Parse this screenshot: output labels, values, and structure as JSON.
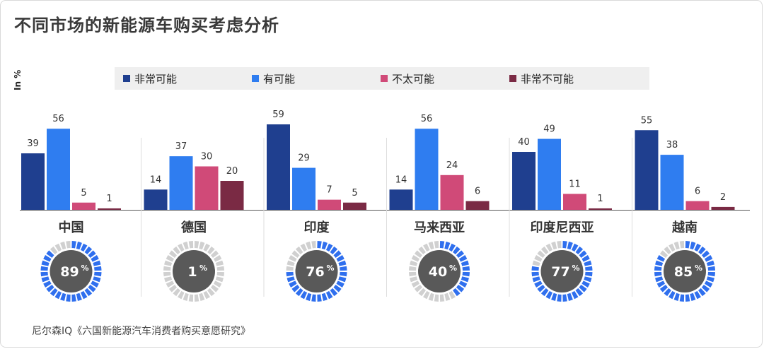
{
  "title": "不同市场的新能源车购买考虑分析",
  "unit_label": "In %",
  "source": "尼尔森IQ《六国新能源汽车消费者购买意愿研究》",
  "colors": {
    "very_likely": "#1f3f8f",
    "likely": "#2f7df0",
    "unlikely": "#d04a78",
    "very_unlikely": "#7a2a44",
    "donut_active": "#2f6fee",
    "donut_inactive": "#d0d0d0",
    "donut_center": "#595959"
  },
  "chart_data": {
    "type": "bar",
    "title": "不同市场的新能源车购买考虑分析",
    "ylabel": "In %",
    "categories": [
      "中国",
      "德国",
      "印度",
      "马来西亚",
      "印度尼西亚",
      "越南"
    ],
    "series": [
      {
        "name": "非常可能",
        "values": [
          39,
          14,
          59,
          14,
          40,
          55
        ]
      },
      {
        "name": "有可能",
        "values": [
          56,
          37,
          29,
          56,
          49,
          38
        ]
      },
      {
        "name": "不太可能",
        "values": [
          5,
          30,
          7,
          24,
          11,
          6
        ]
      },
      {
        "name": "非常不可能",
        "values": [
          1,
          20,
          5,
          6,
          1,
          2
        ]
      }
    ],
    "ylim": [
      0,
      60
    ],
    "legend_position": "top",
    "grid": false,
    "donut_values": [
      89,
      1,
      76,
      40,
      77,
      85
    ],
    "donut_label_suffix": "%"
  }
}
